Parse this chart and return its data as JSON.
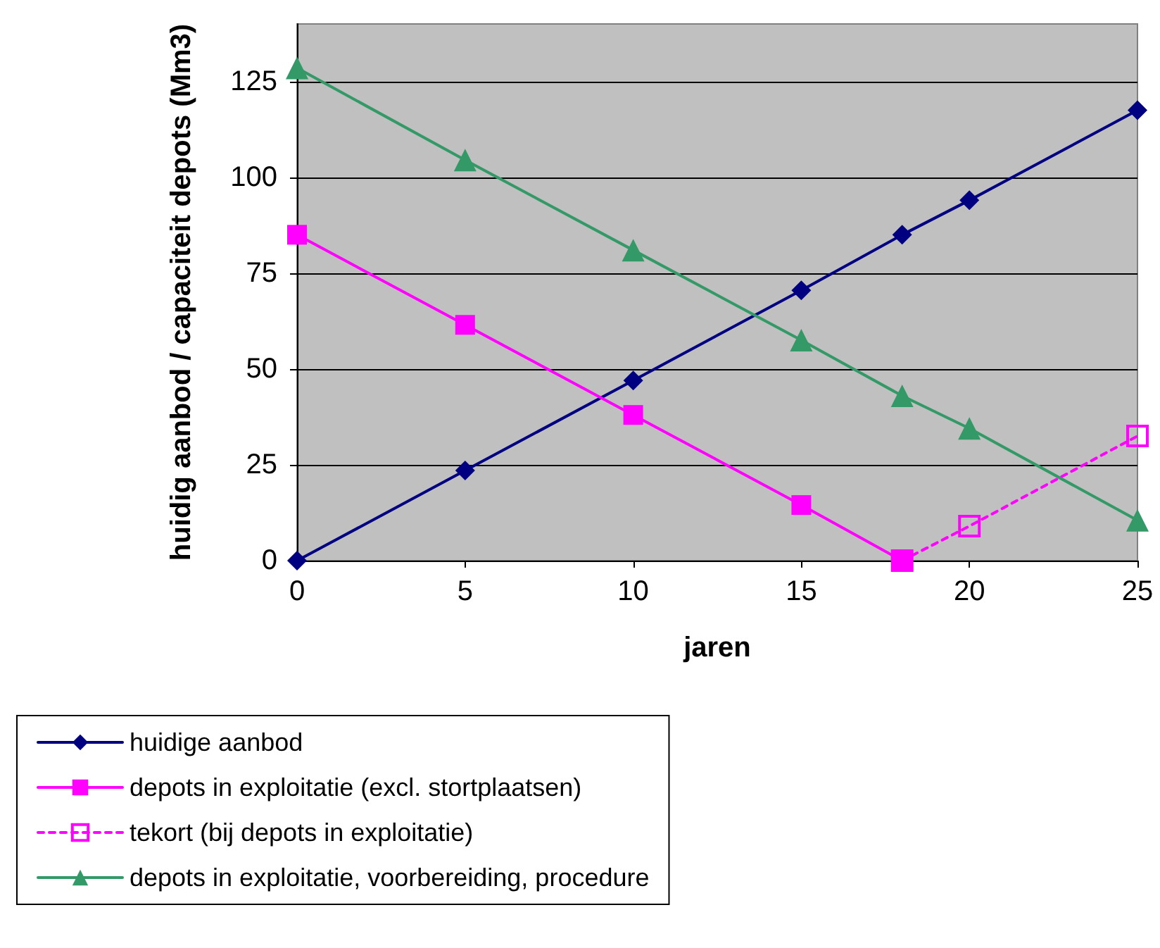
{
  "chart_data": {
    "type": "line",
    "xlabel": "jaren",
    "ylabel": "huidig aanbod / capaciteit depots (Mm3)",
    "xlim": [
      0,
      25
    ],
    "xticks": [
      0,
      5,
      10,
      15,
      20,
      25
    ],
    "ylim": [
      0,
      140
    ],
    "yticks": [
      0,
      25,
      50,
      75,
      100,
      125
    ],
    "grid": "y",
    "legend": "bottom",
    "series": [
      {
        "name": "huidige aanbod",
        "color": "#000080",
        "marker": "diamond",
        "line_style": "solid",
        "x": [
          0,
          5,
          10,
          15,
          18,
          20,
          25
        ],
        "values": [
          0,
          23.5,
          47,
          70.5,
          85,
          94,
          117.5
        ]
      },
      {
        "name": "depots in exploitatie (excl. stortplaatsen)",
        "color": "#ff00ff",
        "marker": "square",
        "line_style": "solid",
        "x": [
          0,
          5,
          10,
          15,
          18
        ],
        "values": [
          85,
          61.5,
          38,
          14.5,
          0
        ]
      },
      {
        "name": "tekort (bij depots in exploitatie)",
        "color": "#ff00ff",
        "marker": "square",
        "line_style": "dashed",
        "x": [
          18,
          20,
          25
        ],
        "values": [
          0,
          9,
          32.5
        ]
      },
      {
        "name": "depots in exploitatie, voorbereiding, procedure",
        "color": "#339966",
        "marker": "triangle",
        "line_style": "solid",
        "x": [
          0,
          5,
          10,
          15,
          18,
          20,
          25
        ],
        "values": [
          128.5,
          104.5,
          81,
          57.5,
          43,
          34.5,
          10.5
        ]
      }
    ]
  }
}
